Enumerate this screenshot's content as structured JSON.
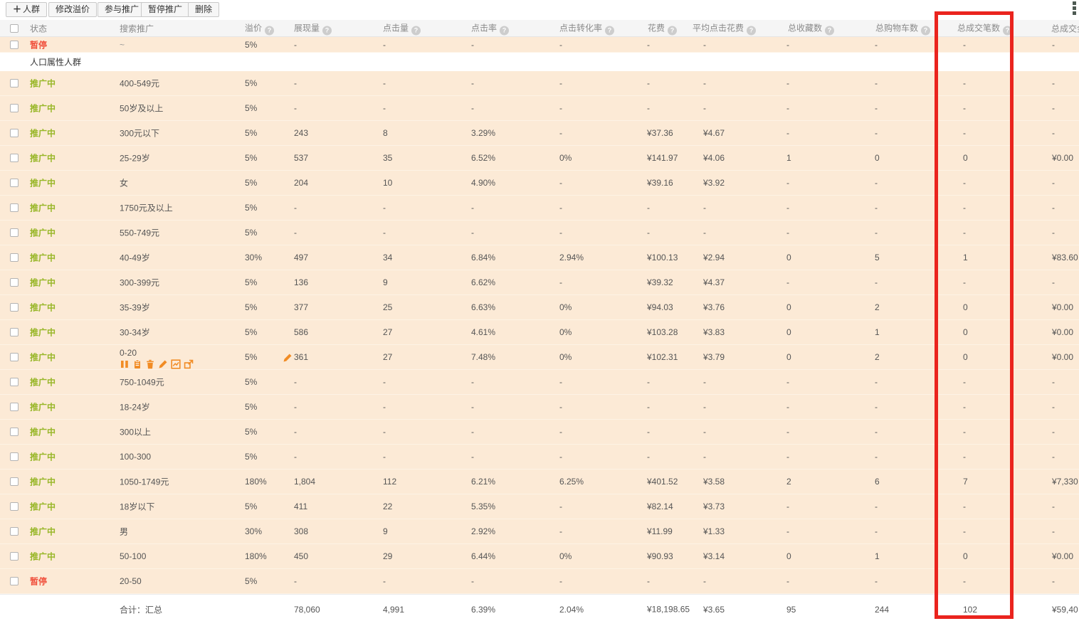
{
  "toolbar": {
    "buttons": [
      {
        "label": "人群",
        "has_plus": true
      },
      {
        "label": "修改溢价"
      },
      {
        "label": "参与推广"
      },
      {
        "label": "暂停推广"
      },
      {
        "label": "删除"
      }
    ]
  },
  "table": {
    "columns": [
      {
        "key": "status",
        "label": "状态",
        "help": false
      },
      {
        "key": "name",
        "label": "搜索推广",
        "help": false
      },
      {
        "key": "premium",
        "label": "溢价",
        "help": true
      },
      {
        "key": "impr",
        "label": "展现量",
        "help": true
      },
      {
        "key": "clicks",
        "label": "点击量",
        "help": true
      },
      {
        "key": "ctr",
        "label": "点击率",
        "help": true
      },
      {
        "key": "cvr",
        "label": "点击转化率",
        "help": true
      },
      {
        "key": "cost",
        "label": "花费",
        "help": true
      },
      {
        "key": "avgcpc",
        "label": "平均点击花费",
        "help": true
      },
      {
        "key": "favs",
        "label": "总收藏数",
        "help": true
      },
      {
        "key": "carts",
        "label": "总购物车数",
        "help": true
      },
      {
        "key": "orders",
        "label": "总成交笔数",
        "help": true
      },
      {
        "key": "amount",
        "label": "总成交金额",
        "help": false
      }
    ],
    "partial_row": {
      "status": "暂停",
      "status_type": "paused",
      "name": "~",
      "premium": "5%",
      "impressions": "-",
      "clicks": "-",
      "ctr": "-",
      "cvr": "-",
      "cost": "-",
      "avg_cpc": "-",
      "favorites": "-",
      "carts": "-",
      "orders": "-",
      "amount": "-"
    },
    "section_header": "人口属性人群",
    "row_action_icons": [
      "pause",
      "clipboard",
      "delete",
      "edit",
      "report",
      "move"
    ],
    "rows": [
      {
        "status": "推广中",
        "status_type": "active",
        "name": "400-549元",
        "premium": "5%",
        "impressions": "-",
        "clicks": "-",
        "ctr": "-",
        "cvr": "-",
        "cost": "-",
        "avg_cpc": "-",
        "favorites": "-",
        "carts": "-",
        "orders": "-",
        "amount": "-"
      },
      {
        "status": "推广中",
        "status_type": "active",
        "name": "50岁及以上",
        "premium": "5%",
        "impressions": "-",
        "clicks": "-",
        "ctr": "-",
        "cvr": "-",
        "cost": "-",
        "avg_cpc": "-",
        "favorites": "-",
        "carts": "-",
        "orders": "-",
        "amount": "-"
      },
      {
        "status": "推广中",
        "status_type": "active",
        "name": "300元以下",
        "premium": "5%",
        "impressions": "243",
        "clicks": "8",
        "ctr": "3.29%",
        "cvr": "-",
        "cost": "¥37.36",
        "avg_cpc": "¥4.67",
        "favorites": "-",
        "carts": "-",
        "orders": "-",
        "amount": "-"
      },
      {
        "status": "推广中",
        "status_type": "active",
        "name": "25-29岁",
        "premium": "5%",
        "impressions": "537",
        "clicks": "35",
        "ctr": "6.52%",
        "cvr": "0%",
        "cost": "¥141.97",
        "avg_cpc": "¥4.06",
        "favorites": "1",
        "carts": "0",
        "orders": "0",
        "amount": "¥0.00"
      },
      {
        "status": "推广中",
        "status_type": "active",
        "name": "女",
        "premium": "5%",
        "impressions": "204",
        "clicks": "10",
        "ctr": "4.90%",
        "cvr": "-",
        "cost": "¥39.16",
        "avg_cpc": "¥3.92",
        "favorites": "-",
        "carts": "-",
        "orders": "-",
        "amount": "-"
      },
      {
        "status": "推广中",
        "status_type": "active",
        "name": "1750元及以上",
        "premium": "5%",
        "impressions": "-",
        "clicks": "-",
        "ctr": "-",
        "cvr": "-",
        "cost": "-",
        "avg_cpc": "-",
        "favorites": "-",
        "carts": "-",
        "orders": "-",
        "amount": "-"
      },
      {
        "status": "推广中",
        "status_type": "active",
        "name": "550-749元",
        "premium": "5%",
        "impressions": "-",
        "clicks": "-",
        "ctr": "-",
        "cvr": "-",
        "cost": "-",
        "avg_cpc": "-",
        "favorites": "-",
        "carts": "-",
        "orders": "-",
        "amount": "-"
      },
      {
        "status": "推广中",
        "status_type": "active",
        "name": "40-49岁",
        "premium": "30%",
        "impressions": "497",
        "clicks": "34",
        "ctr": "6.84%",
        "cvr": "2.94%",
        "cost": "¥100.13",
        "avg_cpc": "¥2.94",
        "favorites": "0",
        "carts": "5",
        "orders": "1",
        "amount": "¥83.60"
      },
      {
        "status": "推广中",
        "status_type": "active",
        "name": "300-399元",
        "premium": "5%",
        "impressions": "136",
        "clicks": "9",
        "ctr": "6.62%",
        "cvr": "-",
        "cost": "¥39.32",
        "avg_cpc": "¥4.37",
        "favorites": "-",
        "carts": "-",
        "orders": "-",
        "amount": "-"
      },
      {
        "status": "推广中",
        "status_type": "active",
        "name": "35-39岁",
        "premium": "5%",
        "impressions": "377",
        "clicks": "25",
        "ctr": "6.63%",
        "cvr": "0%",
        "cost": "¥94.03",
        "avg_cpc": "¥3.76",
        "favorites": "0",
        "carts": "2",
        "orders": "0",
        "amount": "¥0.00"
      },
      {
        "status": "推广中",
        "status_type": "active",
        "name": "30-34岁",
        "premium": "5%",
        "impressions": "586",
        "clicks": "27",
        "ctr": "4.61%",
        "cvr": "0%",
        "cost": "¥103.28",
        "avg_cpc": "¥3.83",
        "favorites": "0",
        "carts": "1",
        "orders": "0",
        "amount": "¥0.00"
      },
      {
        "status": "推广中",
        "status_type": "active",
        "name": "0-20",
        "premium": "5%",
        "impressions": "361",
        "clicks": "27",
        "ctr": "7.48%",
        "cvr": "0%",
        "cost": "¥102.31",
        "avg_cpc": "¥3.79",
        "favorites": "0",
        "carts": "2",
        "orders": "0",
        "amount": "¥0.00",
        "actions": true
      },
      {
        "status": "推广中",
        "status_type": "active",
        "name": "750-1049元",
        "premium": "5%",
        "impressions": "-",
        "clicks": "-",
        "ctr": "-",
        "cvr": "-",
        "cost": "-",
        "avg_cpc": "-",
        "favorites": "-",
        "carts": "-",
        "orders": "-",
        "amount": "-"
      },
      {
        "status": "推广中",
        "status_type": "active",
        "name": "18-24岁",
        "premium": "5%",
        "impressions": "-",
        "clicks": "-",
        "ctr": "-",
        "cvr": "-",
        "cost": "-",
        "avg_cpc": "-",
        "favorites": "-",
        "carts": "-",
        "orders": "-",
        "amount": "-"
      },
      {
        "status": "推广中",
        "status_type": "active",
        "name": "300以上",
        "premium": "5%",
        "impressions": "-",
        "clicks": "-",
        "ctr": "-",
        "cvr": "-",
        "cost": "-",
        "avg_cpc": "-",
        "favorites": "-",
        "carts": "-",
        "orders": "-",
        "amount": "-"
      },
      {
        "status": "推广中",
        "status_type": "active",
        "name": "100-300",
        "premium": "5%",
        "impressions": "-",
        "clicks": "-",
        "ctr": "-",
        "cvr": "-",
        "cost": "-",
        "avg_cpc": "-",
        "favorites": "-",
        "carts": "-",
        "orders": "-",
        "amount": "-"
      },
      {
        "status": "推广中",
        "status_type": "active",
        "name": "1050-1749元",
        "premium": "180%",
        "impressions": "1,804",
        "clicks": "112",
        "ctr": "6.21%",
        "cvr": "6.25%",
        "cost": "¥401.52",
        "avg_cpc": "¥3.58",
        "favorites": "2",
        "carts": "6",
        "orders": "7",
        "amount": "¥7,330"
      },
      {
        "status": "推广中",
        "status_type": "active",
        "name": "18岁以下",
        "premium": "5%",
        "impressions": "411",
        "clicks": "22",
        "ctr": "5.35%",
        "cvr": "-",
        "cost": "¥82.14",
        "avg_cpc": "¥3.73",
        "favorites": "-",
        "carts": "-",
        "orders": "-",
        "amount": "-"
      },
      {
        "status": "推广中",
        "status_type": "active",
        "name": "男",
        "premium": "30%",
        "impressions": "308",
        "clicks": "9",
        "ctr": "2.92%",
        "cvr": "-",
        "cost": "¥11.99",
        "avg_cpc": "¥1.33",
        "favorites": "-",
        "carts": "-",
        "orders": "-",
        "amount": "-"
      },
      {
        "status": "推广中",
        "status_type": "active",
        "name": "50-100",
        "premium": "180%",
        "impressions": "450",
        "clicks": "29",
        "ctr": "6.44%",
        "cvr": "0%",
        "cost": "¥90.93",
        "avg_cpc": "¥3.14",
        "favorites": "0",
        "carts": "1",
        "orders": "0",
        "amount": "¥0.00"
      },
      {
        "status": "暂停",
        "status_type": "paused",
        "name": "20-50",
        "premium": "5%",
        "impressions": "-",
        "clicks": "-",
        "ctr": "-",
        "cvr": "-",
        "cost": "-",
        "avg_cpc": "-",
        "favorites": "-",
        "carts": "-",
        "orders": "-",
        "amount": "-"
      }
    ],
    "totals": {
      "label": "合计：汇总",
      "impressions": "78,060",
      "clicks": "4,991",
      "ctr": "6.39%",
      "cvr": "2.04%",
      "cost": "¥18,198.65",
      "avg_cpc": "¥3.65",
      "favorites": "95",
      "carts": "244",
      "orders": "102",
      "amount": "¥59,40"
    }
  },
  "annotation": {
    "type": "red-rectangle",
    "highlight_column": "总成交笔数",
    "color": "#ea241e"
  },
  "colors": {
    "row_bg": "#fcead6",
    "active_status": "#97b626",
    "paused_status": "#f0503c",
    "accent_orange": "#f18c25",
    "header_bg": "#f5f5f5"
  }
}
